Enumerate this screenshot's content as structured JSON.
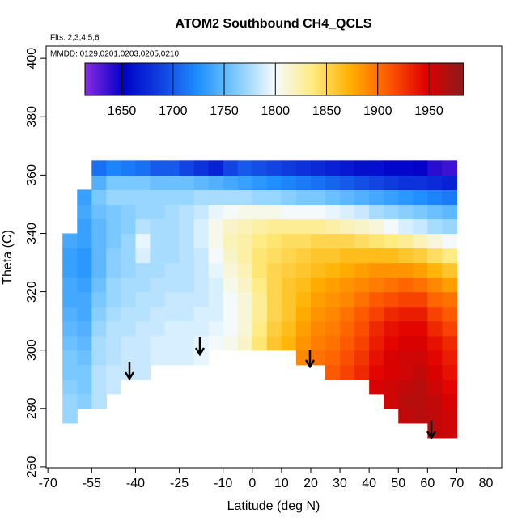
{
  "chart_data": {
    "type": "heatmap",
    "title": "ATOM2 Southbound CH4_QCLS",
    "annotations": [
      "Flts: 2,3,4,5,6",
      "MMDD: 0129,0201,0203,0205,0210"
    ],
    "xlabel": "Latitude (deg N)",
    "ylabel": "Theta (C)",
    "xlim": [
      -70.6,
      85.4
    ],
    "xticks": [
      -70,
      -55,
      -40,
      -25,
      -10,
      0,
      10,
      20,
      30,
      40,
      50,
      60,
      70,
      80
    ],
    "ylim": [
      259.7,
      404.2
    ],
    "yticks": [
      260,
      280,
      300,
      320,
      340,
      360,
      380,
      400
    ],
    "colorbar": {
      "lim": [
        1614,
        1984
      ],
      "ticks": [
        1650,
        1700,
        1750,
        1800,
        1850,
        1900,
        1950
      ]
    },
    "colors": [
      "#8a2be2",
      "#0000c8",
      "#1040e0",
      "#1e90ff",
      "#7ecbff",
      "#f4faff",
      "#ffec80",
      "#ffb000",
      "#ff5a00",
      "#e00000",
      "#8b1a1a"
    ],
    "x_edges": [
      -65,
      -60,
      -55,
      -50,
      -45,
      -40,
      -35,
      -30,
      -25,
      -20,
      -15,
      -10,
      -5,
      0,
      5,
      10,
      15,
      20,
      25,
      30,
      35,
      40,
      45,
      50,
      55,
      60,
      65,
      70
    ],
    "y_edges": [
      270,
      275,
      280,
      285,
      290,
      295,
      300,
      305,
      310,
      315,
      320,
      325,
      330,
      335,
      340,
      345,
      350,
      355,
      360,
      365
    ],
    "z": [
      [
        null,
        null,
        null,
        null,
        null,
        null,
        null,
        null,
        null,
        null,
        null,
        null,
        null,
        null,
        null,
        null,
        null,
        null,
        null,
        null,
        null,
        null,
        null,
        null,
        null,
        1960,
        1955
      ],
      [
        1770,
        null,
        null,
        null,
        null,
        null,
        null,
        null,
        null,
        null,
        null,
        null,
        null,
        null,
        null,
        null,
        null,
        null,
        null,
        null,
        null,
        null,
        null,
        1960,
        1965,
        1960,
        1955
      ],
      [
        1770,
        1765,
        1780,
        null,
        null,
        null,
        null,
        null,
        null,
        null,
        null,
        null,
        null,
        null,
        null,
        null,
        null,
        null,
        null,
        null,
        null,
        null,
        1955,
        1965,
        1965,
        1960,
        1950
      ],
      [
        1765,
        1760,
        1780,
        1785,
        null,
        null,
        null,
        null,
        null,
        null,
        null,
        null,
        null,
        null,
        null,
        null,
        null,
        null,
        null,
        null,
        null,
        1950,
        1955,
        1960,
        1965,
        1955,
        1945
      ],
      [
        1760,
        1760,
        1780,
        1785,
        1785,
        1785,
        null,
        null,
        null,
        null,
        null,
        null,
        null,
        null,
        null,
        null,
        null,
        null,
        1910,
        1920,
        1930,
        1945,
        1950,
        1955,
        1960,
        1950,
        1940
      ],
      [
        1760,
        1755,
        1775,
        1780,
        1785,
        1785,
        1790,
        1790,
        1790,
        1795,
        null,
        null,
        null,
        null,
        null,
        null,
        1890,
        1900,
        1905,
        1915,
        1925,
        1940,
        1950,
        1955,
        1955,
        1945,
        1935
      ],
      [
        1755,
        1750,
        1775,
        1780,
        1785,
        1785,
        1790,
        1790,
        1790,
        1795,
        1800,
        1805,
        1815,
        1840,
        1860,
        1870,
        1885,
        1895,
        1900,
        1910,
        1920,
        1935,
        1945,
        1950,
        1950,
        1940,
        1930
      ],
      [
        1750,
        1745,
        1770,
        1780,
        1780,
        1785,
        1785,
        1790,
        1790,
        1790,
        1795,
        1800,
        1810,
        1835,
        1855,
        1865,
        1880,
        1890,
        1895,
        1905,
        1915,
        1930,
        1940,
        1945,
        1945,
        1930,
        1920
      ],
      [
        1745,
        1740,
        1765,
        1775,
        1780,
        1780,
        1785,
        1785,
        1785,
        1790,
        1790,
        1800,
        1810,
        1830,
        1850,
        1860,
        1875,
        1885,
        1890,
        1900,
        1910,
        1920,
        1930,
        1935,
        1935,
        1920,
        1910
      ],
      [
        1740,
        1740,
        1760,
        1770,
        1775,
        1780,
        1780,
        1785,
        1785,
        1785,
        1790,
        1800,
        1810,
        1830,
        1850,
        1860,
        1870,
        1880,
        1885,
        1890,
        1900,
        1910,
        1915,
        1920,
        1920,
        1905,
        1900
      ],
      [
        1740,
        1735,
        1755,
        1770,
        1775,
        1775,
        1780,
        1780,
        1780,
        1785,
        1790,
        1805,
        1815,
        1835,
        1850,
        1860,
        1865,
        1875,
        1880,
        1885,
        1890,
        1895,
        1900,
        1905,
        1900,
        1890,
        1880
      ],
      [
        1735,
        1730,
        1750,
        1765,
        1770,
        1775,
        1775,
        1780,
        1780,
        1785,
        1795,
        1810,
        1820,
        1840,
        1850,
        1855,
        1860,
        1865,
        1870,
        1875,
        1880,
        1885,
        1885,
        1885,
        1880,
        1870,
        1860
      ],
      [
        1735,
        1730,
        1750,
        1765,
        1770,
        1790,
        1775,
        1775,
        1780,
        1785,
        1800,
        1815,
        1825,
        1840,
        1845,
        1850,
        1855,
        1860,
        1860,
        1865,
        1865,
        1865,
        1865,
        1860,
        1855,
        1845,
        1835
      ],
      [
        1740,
        1735,
        1750,
        1760,
        1770,
        1795,
        1775,
        1775,
        1780,
        1790,
        1805,
        1820,
        1825,
        1835,
        1840,
        1845,
        1845,
        1850,
        1850,
        1850,
        1845,
        1840,
        1835,
        1830,
        1820,
        1810,
        1800
      ],
      [
        null,
        1735,
        1750,
        1760,
        1765,
        1780,
        1775,
        1775,
        1780,
        1790,
        1805,
        1815,
        1820,
        1825,
        1830,
        1830,
        1830,
        1830,
        1825,
        1820,
        1815,
        1810,
        1800,
        1790,
        1785,
        1775,
        1770
      ],
      [
        null,
        1740,
        1755,
        1760,
        1765,
        1770,
        1770,
        1775,
        1780,
        1785,
        1795,
        1800,
        1805,
        1805,
        1805,
        1800,
        1800,
        1800,
        1795,
        1790,
        1785,
        1775,
        1770,
        1765,
        1760,
        1755,
        1750
      ],
      [
        null,
        1735,
        1760,
        1770,
        1770,
        1770,
        1770,
        1770,
        1770,
        1775,
        1775,
        1775,
        1775,
        1770,
        1770,
        1765,
        1760,
        1760,
        1755,
        1750,
        1745,
        1740,
        1735,
        1730,
        1725,
        1720,
        1715
      ],
      [
        null,
        null,
        1745,
        1760,
        1760,
        1760,
        1755,
        1755,
        1755,
        1750,
        1745,
        1740,
        1735,
        1730,
        1725,
        1720,
        1715,
        1710,
        1705,
        1700,
        1695,
        1690,
        1685,
        1680,
        1680,
        1675,
        1670
      ],
      [
        null,
        null,
        1710,
        1720,
        1715,
        1710,
        1700,
        1700,
        1690,
        1680,
        1670,
        1690,
        1700,
        1695,
        1690,
        1685,
        1680,
        1675,
        1670,
        1665,
        1660,
        1660,
        1655,
        1655,
        1650,
        1640,
        1635
      ]
    ]
  }
}
